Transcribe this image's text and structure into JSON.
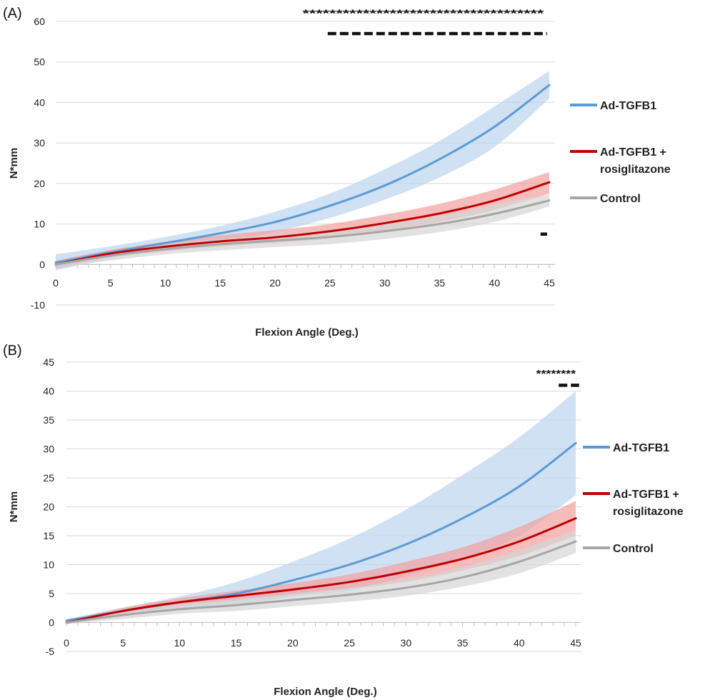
{
  "chart_data": [
    {
      "panel_label": "(A)",
      "type": "line",
      "xlabel": "Flexion Angle (Deg.)",
      "ylabel": "N*mm",
      "xlim": [
        0,
        45
      ],
      "ylim": [
        -10,
        60
      ],
      "x_ticks": [
        0,
        5,
        10,
        15,
        20,
        25,
        30,
        35,
        40,
        45
      ],
      "y_ticks": [
        -10,
        0,
        10,
        20,
        30,
        40,
        50,
        60
      ],
      "grid": true,
      "legend_position": "right",
      "x": [
        0,
        5,
        10,
        15,
        20,
        25,
        30,
        35,
        40,
        45
      ],
      "series": [
        {
          "name": "Ad-TGFB1",
          "color": "#5b9bd5",
          "band_color": "#bcd4ee",
          "values": [
            0.5,
            3.0,
            5.3,
            7.7,
            10.5,
            14.5,
            19.5,
            26.0,
            34.0,
            44.3
          ],
          "lower": [
            -1.5,
            1.5,
            3.5,
            5.5,
            8.0,
            11.5,
            16.0,
            21.5,
            29.0,
            41.0
          ],
          "upper": [
            2.5,
            4.5,
            6.8,
            9.5,
            13.0,
            17.5,
            23.5,
            30.5,
            39.0,
            47.8
          ]
        },
        {
          "name": "Ad-TGFB1 + rosiglitazone",
          "legend_lines": [
            "Ad-TGFB1 +",
            "rosiglitazone"
          ],
          "color": "#c00000",
          "band_color": "#f2a0a0",
          "values": [
            0.0,
            2.7,
            4.4,
            5.7,
            6.7,
            8.2,
            10.2,
            12.6,
            15.8,
            20.3
          ],
          "lower": [
            -1.0,
            1.8,
            3.2,
            4.5,
            5.3,
            6.5,
            8.2,
            10.5,
            13.5,
            17.5
          ],
          "upper": [
            1.0,
            3.6,
            5.6,
            7.2,
            8.5,
            10.0,
            12.3,
            15.0,
            18.5,
            22.8
          ]
        },
        {
          "name": "Control",
          "color": "#a6a6a6",
          "band_color": "#d6d6d6",
          "values": [
            0.0,
            2.2,
            3.8,
            5.0,
            5.9,
            6.8,
            8.2,
            10.0,
            12.5,
            15.8
          ],
          "lower": [
            -1.0,
            1.0,
            2.5,
            3.5,
            4.3,
            5.0,
            6.3,
            8.0,
            10.5,
            14.3
          ],
          "upper": [
            1.0,
            3.2,
            5.0,
            6.3,
            7.3,
            8.5,
            10.0,
            12.0,
            14.8,
            17.3
          ]
        }
      ],
      "significance": [
        {
          "type": "stars",
          "text": "************************************",
          "x_start": 22.5,
          "x_end": 44.5,
          "y": 62.0
        },
        {
          "type": "dash",
          "x_start": 24.8,
          "x_end": 44.8,
          "y": 57.0
        },
        {
          "type": "dash",
          "x_start": 44.2,
          "x_end": 44.8,
          "y": 7.5
        }
      ]
    },
    {
      "panel_label": "(B)",
      "type": "line",
      "xlabel": "Flexion Angle (Deg.)",
      "ylabel": "N*mm",
      "xlim": [
        0,
        45
      ],
      "ylim": [
        -5,
        45
      ],
      "x_ticks": [
        0,
        5,
        10,
        15,
        20,
        25,
        30,
        35,
        40,
        45
      ],
      "y_ticks": [
        -5,
        0,
        5,
        10,
        15,
        20,
        25,
        30,
        35,
        40,
        45
      ],
      "grid": true,
      "legend_position": "right",
      "x": [
        0,
        5,
        10,
        15,
        20,
        25,
        30,
        35,
        40,
        45
      ],
      "series": [
        {
          "name": "Ad-TGFB1",
          "color": "#5b9bd5",
          "band_color": "#bcd4ee",
          "values": [
            0.3,
            2.0,
            3.5,
            5.0,
            7.3,
            10.0,
            13.5,
            18.0,
            23.5,
            31.0
          ],
          "lower": [
            0.0,
            1.5,
            2.5,
            3.0,
            4.5,
            5.5,
            8.0,
            11.0,
            15.0,
            22.0
          ],
          "upper": [
            0.6,
            2.6,
            4.5,
            7.0,
            10.5,
            14.5,
            19.5,
            25.5,
            32.0,
            40.0
          ]
        },
        {
          "name": "Ad-TGFB1 + rosiglitazone",
          "legend_lines": [
            "Ad-TGFB1 +",
            "rosiglitazone"
          ],
          "color": "#c00000",
          "band_color": "#f2a0a0",
          "values": [
            0.0,
            2.0,
            3.5,
            4.6,
            5.7,
            7.0,
            8.8,
            11.0,
            14.0,
            18.0
          ],
          "lower": [
            -0.3,
            1.5,
            2.8,
            3.8,
            4.8,
            5.8,
            7.0,
            9.0,
            11.5,
            15.0
          ],
          "upper": [
            0.3,
            2.5,
            4.2,
            5.5,
            6.8,
            8.3,
            10.5,
            13.0,
            16.5,
            21.0
          ]
        },
        {
          "name": "Control",
          "color": "#a6a6a6",
          "band_color": "#d6d6d6",
          "values": [
            0.0,
            1.3,
            2.3,
            3.0,
            3.9,
            4.8,
            6.0,
            7.8,
            10.5,
            14.0
          ],
          "lower": [
            -0.3,
            0.6,
            1.5,
            2.0,
            2.8,
            3.6,
            4.6,
            6.2,
            8.5,
            12.0
          ],
          "upper": [
            0.3,
            2.0,
            3.2,
            4.0,
            5.0,
            6.0,
            7.5,
            9.5,
            12.5,
            16.0
          ]
        }
      ],
      "significance": [
        {
          "type": "stars",
          "text": "********",
          "x_start": 41.5,
          "x_end": 45.0,
          "y": 43.0
        },
        {
          "type": "dash",
          "x_start": 43.5,
          "x_end": 45.3,
          "y": 41.0
        }
      ]
    }
  ]
}
